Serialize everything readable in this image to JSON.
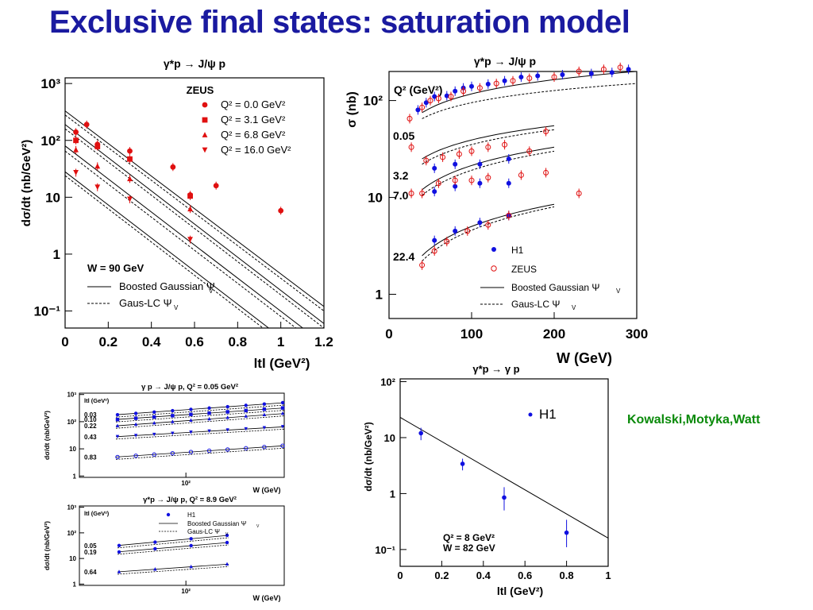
{
  "slide": {
    "title": "Exclusive final states: saturation model",
    "credit": "Kowalski,Motyka,Watt",
    "accent_color": "#1a1aa0",
    "credit_color": "#0a8a0a"
  },
  "chart_data": [
    {
      "id": "zeus_t",
      "type": "scatter",
      "title": "γ*p → J/ψ p",
      "xlabel": "ltl  (GeV²)",
      "ylabel": "dσ/dt  (nb/GeV²)",
      "xlim": [
        0,
        1.2
      ],
      "ylim_log10": [
        -1.3,
        3.1
      ],
      "xticks": [
        "0",
        "0.2",
        "0.4",
        "0.6",
        "0.8",
        "1",
        "1.2"
      ],
      "yticks": [
        {
          "v": -1,
          "t": "10⁻¹"
        },
        {
          "v": 0,
          "t": "1"
        },
        {
          "v": 1,
          "t": "10"
        },
        {
          "v": 2,
          "t": "10²"
        },
        {
          "v": 3,
          "t": "10³"
        }
      ],
      "legend_title": "ZEUS",
      "series": [
        {
          "name": "Q² =  0.0 GeV²",
          "marker": "circle",
          "color": "#e01010",
          "x": [
            0.05,
            0.1,
            0.15,
            0.3,
            0.5,
            0.58,
            0.7,
            1.0
          ],
          "y": [
            140,
            190,
            85,
            65,
            34,
            11,
            16,
            5.8
          ]
        },
        {
          "name": "Q² =  3.1 GeV²",
          "marker": "square",
          "color": "#e01010",
          "x": [
            0.05,
            0.15,
            0.3,
            0.58
          ],
          "y": [
            100,
            78,
            47,
            10.5
          ]
        },
        {
          "name": "Q² =  6.8 GeV²",
          "marker": "triangle",
          "color": "#e01010",
          "x": [
            0.05,
            0.15,
            0.3,
            0.58
          ],
          "y": [
            68,
            35,
            21,
            6.2
          ]
        },
        {
          "name": "Q² = 16.0 GeV²",
          "marker": "triangle-down",
          "color": "#e01010",
          "x": [
            0.05,
            0.15,
            0.3,
            0.58
          ],
          "y": [
            27,
            15,
            9.2,
            1.8
          ]
        }
      ],
      "curves": {
        "solid": [
          [
            0,
            1.2,
            330,
            0.12
          ],
          [
            0,
            1.2,
            190,
            0.06
          ],
          [
            0,
            1.2,
            80,
            0.026
          ],
          [
            0,
            1.2,
            28,
            0.009
          ]
        ],
        "dashed": [
          [
            0,
            1.2,
            280,
            0.1
          ],
          [
            0,
            1.2,
            160,
            0.05
          ],
          [
            0,
            1.2,
            65,
            0.021
          ],
          [
            0,
            1.2,
            24,
            0.0075
          ]
        ]
      },
      "note": "W = 90 GeV",
      "legend": {
        "solid": "Boosted Gaussian Ψ",
        "dashed": "Gaus-LC Ψ",
        "sub": "V"
      }
    },
    {
      "id": "sigma_w",
      "type": "scatter",
      "title": "γ*p → J/ψ p",
      "xlabel": "W  (GeV)",
      "ylabel": "σ  (nb)",
      "xlim": [
        0,
        300
      ],
      "ylim_log10": [
        -0.25,
        2.3
      ],
      "xticks": [
        "0",
        "100",
        "200",
        "300"
      ],
      "yticks": [
        {
          "v": 0,
          "t": "1"
        },
        {
          "v": 1,
          "t": "10"
        },
        {
          "v": 2,
          "t": "10²"
        }
      ],
      "corner_label": "Q²  (GeV²)",
      "q2_labels": [
        "0.05",
        "3.2",
        "7.0",
        "22.4"
      ],
      "series": [
        {
          "name": "H1",
          "marker": "circle",
          "color": "#1010e0",
          "points": [
            [
              35,
              80
            ],
            [
              45,
              95
            ],
            [
              55,
              110
            ],
            [
              70,
              112
            ],
            [
              80,
              125
            ],
            [
              90,
              135
            ],
            [
              100,
              140
            ],
            [
              120,
              148
            ],
            [
              140,
              160
            ],
            [
              160,
              175
            ],
            [
              180,
              180
            ],
            [
              210,
              185
            ],
            [
              245,
              190
            ],
            [
              270,
              195
            ],
            [
              290,
              210
            ],
            [
              55,
              20
            ],
            [
              80,
              22
            ],
            [
              110,
              22
            ],
            [
              145,
              25
            ],
            [
              55,
              11.5
            ],
            [
              80,
              13
            ],
            [
              110,
              14
            ],
            [
              145,
              14
            ],
            [
              55,
              3.6
            ],
            [
              80,
              4.5
            ],
            [
              110,
              5.5
            ],
            [
              145,
              6.5
            ]
          ]
        },
        {
          "name": "ZEUS",
          "marker": "open-circle",
          "color": "#e01010",
          "points": [
            [
              25,
              65
            ],
            [
              40,
              85
            ],
            [
              50,
              100
            ],
            [
              60,
              105
            ],
            [
              75,
              110
            ],
            [
              90,
              125
            ],
            [
              110,
              135
            ],
            [
              130,
              150
            ],
            [
              150,
              160
            ],
            [
              170,
              170
            ],
            [
              200,
              175
            ],
            [
              230,
              200
            ],
            [
              260,
              210
            ],
            [
              280,
              220
            ],
            [
              27,
              33
            ],
            [
              45,
              24
            ],
            [
              65,
              26
            ],
            [
              85,
              28
            ],
            [
              100,
              30
            ],
            [
              120,
              33
            ],
            [
              140,
              35
            ],
            [
              170,
              30
            ],
            [
              190,
              48
            ],
            [
              27,
              11
            ],
            [
              40,
              11
            ],
            [
              60,
              14
            ],
            [
              80,
              15
            ],
            [
              100,
              15
            ],
            [
              120,
              16
            ],
            [
              160,
              17
            ],
            [
              190,
              18
            ],
            [
              230,
              11
            ],
            [
              40,
              2
            ],
            [
              55,
              2.8
            ],
            [
              70,
              3.5
            ],
            [
              95,
              4.5
            ],
            [
              120,
              5.2
            ],
            [
              145,
              6.5
            ]
          ]
        }
      ],
      "curves": {
        "solid": [
          [
            40,
            300,
            75,
            200,
            0.5
          ],
          [
            40,
            200,
            25,
            55,
            0.5
          ],
          [
            40,
            200,
            12,
            33,
            0.5
          ],
          [
            40,
            200,
            2.5,
            8.5,
            0.6
          ]
        ],
        "dashed": [
          [
            40,
            300,
            65,
            150,
            0.5
          ],
          [
            40,
            200,
            22,
            50,
            0.5
          ],
          [
            40,
            200,
            10.5,
            30,
            0.5
          ],
          [
            40,
            200,
            2.2,
            8,
            0.6
          ]
        ]
      },
      "legend": {
        "h1": "H1",
        "zeus": "ZEUS",
        "solid": "Boosted Gaussian Ψ",
        "dashed": "Gaus-LC Ψ",
        "sub": "V"
      }
    },
    {
      "id": "dvcs_t",
      "type": "scatter",
      "title": "γ*p → γ p",
      "xlabel": "ltl  (GeV²)",
      "ylabel": "dσ/dt (nb/GeV²)",
      "xlim": [
        0,
        1
      ],
      "ylim_log10": [
        -1.3,
        2.05
      ],
      "xticks": [
        "0",
        "0.2",
        "0.4",
        "0.6",
        "0.8",
        "1"
      ],
      "yticks": [
        {
          "v": -1,
          "t": "10⁻¹"
        },
        {
          "v": 0,
          "t": "1"
        },
        {
          "v": 1,
          "t": "10"
        },
        {
          "v": 2,
          "t": "10²"
        }
      ],
      "series": [
        {
          "name": "H1",
          "marker": "circle",
          "color": "#1010e0",
          "x": [
            0.1,
            0.3,
            0.5,
            0.8
          ],
          "y": [
            12,
            3.4,
            0.85,
            0.2
          ],
          "err": [
            [
              9,
              15
            ],
            [
              2.6,
              4.2
            ],
            [
              0.5,
              1.3
            ],
            [
              0.11,
              0.34
            ]
          ]
        }
      ],
      "curve": [
        0,
        1,
        23,
        0.16
      ],
      "notes": [
        "Q² = 8 GeV²",
        "W = 82 GeV"
      ]
    },
    {
      "id": "small_q005",
      "type": "scatter",
      "title": "γ p → J/ψ p,  Q² = 0.05 GeV²",
      "xlabel": "W  (GeV)",
      "ylabel": "dσ/dt  (nb/GeV²)",
      "t_header": "ltl  (GeV²)",
      "yticks": [
        {
          "v": 0,
          "t": "1"
        },
        {
          "v": 1,
          "t": "10"
        },
        {
          "v": 2,
          "t": "10²"
        },
        {
          "v": 3,
          "t": "10³"
        }
      ],
      "xtick_label": "10²",
      "t_values": [
        "0.03",
        "0.10",
        "0.22",
        "0.43",
        "0.83"
      ],
      "rows": [
        {
          "t": "0.03",
          "start": 180,
          "end": 500,
          "marker": "circle",
          "color": "#1010e0"
        },
        {
          "t": "0.10",
          "start": 120,
          "end": 320,
          "marker": "square",
          "color": "#1010e0"
        },
        {
          "t": "0.22",
          "start": 70,
          "end": 200,
          "marker": "triangle",
          "color": "#1010e0"
        },
        {
          "t": "0.43",
          "start": 28,
          "end": 65,
          "marker": "triangle-down",
          "color": "#1010e0"
        },
        {
          "t": "0.83",
          "start": 5,
          "end": 13,
          "marker": "open-circle",
          "color": "#1010e0"
        }
      ]
    },
    {
      "id": "small_q89",
      "type": "scatter",
      "title": "γ*p → J/ψ p,  Q² = 8.9 GeV²",
      "xlabel": "W  (GeV)",
      "ylabel": "dσ/dt  (nb/GeV²)",
      "t_header": "ltl  (GeV²)",
      "yticks": [
        {
          "v": 0,
          "t": "1"
        },
        {
          "v": 1,
          "t": "10"
        },
        {
          "v": 2,
          "t": "10²"
        },
        {
          "v": 3,
          "t": "10³"
        }
      ],
      "xtick_label": "10²",
      "t_values": [
        "0.05",
        "0.19",
        "0.64"
      ],
      "rows": [
        {
          "t": "0.05",
          "start": 32,
          "end": 80,
          "marker": "circle",
          "color": "#1010e0"
        },
        {
          "t": "0.19",
          "start": 18,
          "end": 42,
          "marker": "circle",
          "color": "#1010e0"
        },
        {
          "t": "0.64",
          "start": 3,
          "end": 6,
          "marker": "triangle",
          "color": "#1010e0"
        }
      ],
      "legend": {
        "h1": "H1",
        "solid": "Boosted Gaussian Ψ",
        "dashed": "Gaus-LC Ψ",
        "sub": "V"
      }
    }
  ]
}
